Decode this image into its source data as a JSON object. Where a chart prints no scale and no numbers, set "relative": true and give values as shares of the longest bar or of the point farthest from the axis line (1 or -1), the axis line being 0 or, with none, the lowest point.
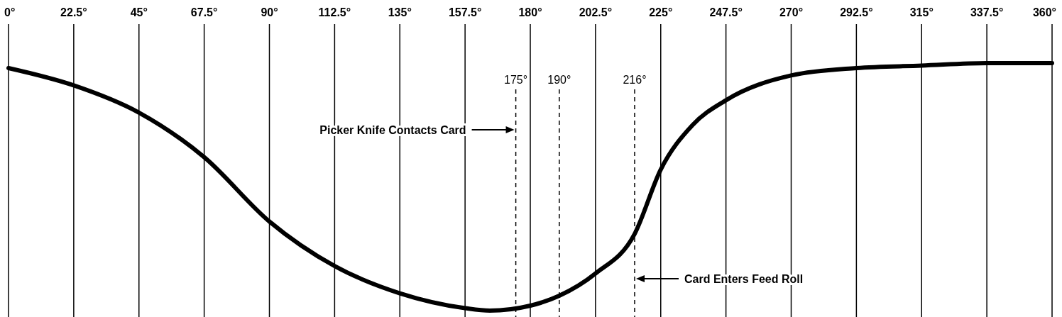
{
  "chart_data": {
    "type": "line",
    "relative": true,
    "xlim": [
      0,
      360
    ],
    "xticks": [
      {
        "value": 0,
        "label": "0°"
      },
      {
        "value": 22.5,
        "label": "22.5°"
      },
      {
        "value": 45,
        "label": "45°"
      },
      {
        "value": 67.5,
        "label": "67.5°"
      },
      {
        "value": 90,
        "label": "90°"
      },
      {
        "value": 112.5,
        "label": "112.5°"
      },
      {
        "value": 135,
        "label": "135°"
      },
      {
        "value": 157.5,
        "label": "157.5°"
      },
      {
        "value": 180,
        "label": "180°"
      },
      {
        "value": 202.5,
        "label": "202.5°"
      },
      {
        "value": 225,
        "label": "225°"
      },
      {
        "value": 247.5,
        "label": "247.5°"
      },
      {
        "value": 270,
        "label": "270°"
      },
      {
        "value": 292.5,
        "label": "292.5°"
      },
      {
        "value": 315,
        "label": "315°"
      },
      {
        "value": 337.5,
        "label": "337.5°"
      },
      {
        "value": 360,
        "label": "360°"
      }
    ],
    "grid": "x",
    "line_style": "solid",
    "marker": "none",
    "series": [
      {
        "color": "#000000",
        "x": [
          0,
          22.5,
          45,
          67.5,
          90,
          112.5,
          135,
          157.5,
          166,
          180,
          190,
          202.5,
          216,
          225,
          236,
          247.5,
          270,
          292.5,
          315,
          337.5,
          360
        ],
        "values": [
          0.98,
          0.91,
          0.8,
          0.62,
          0.36,
          0.18,
          0.07,
          0.01,
          0,
          0.02,
          0.06,
          0.15,
          0.31,
          0.57,
          0.75,
          0.85,
          0.95,
          0.98,
          0.99,
          1,
          1
        ]
      }
    ],
    "ref_lines": [
      {
        "axis": "x",
        "value": 175,
        "label": "175°",
        "line_style": "dashed"
      },
      {
        "axis": "x",
        "value": 190,
        "label": "190°",
        "line_style": "dashed"
      },
      {
        "axis": "x",
        "value": 216,
        "label": "216°",
        "line_style": "dashed"
      }
    ],
    "annotations": [
      "Picker Knife Contacts Card",
      "Card Enters Feed Roll"
    ]
  }
}
